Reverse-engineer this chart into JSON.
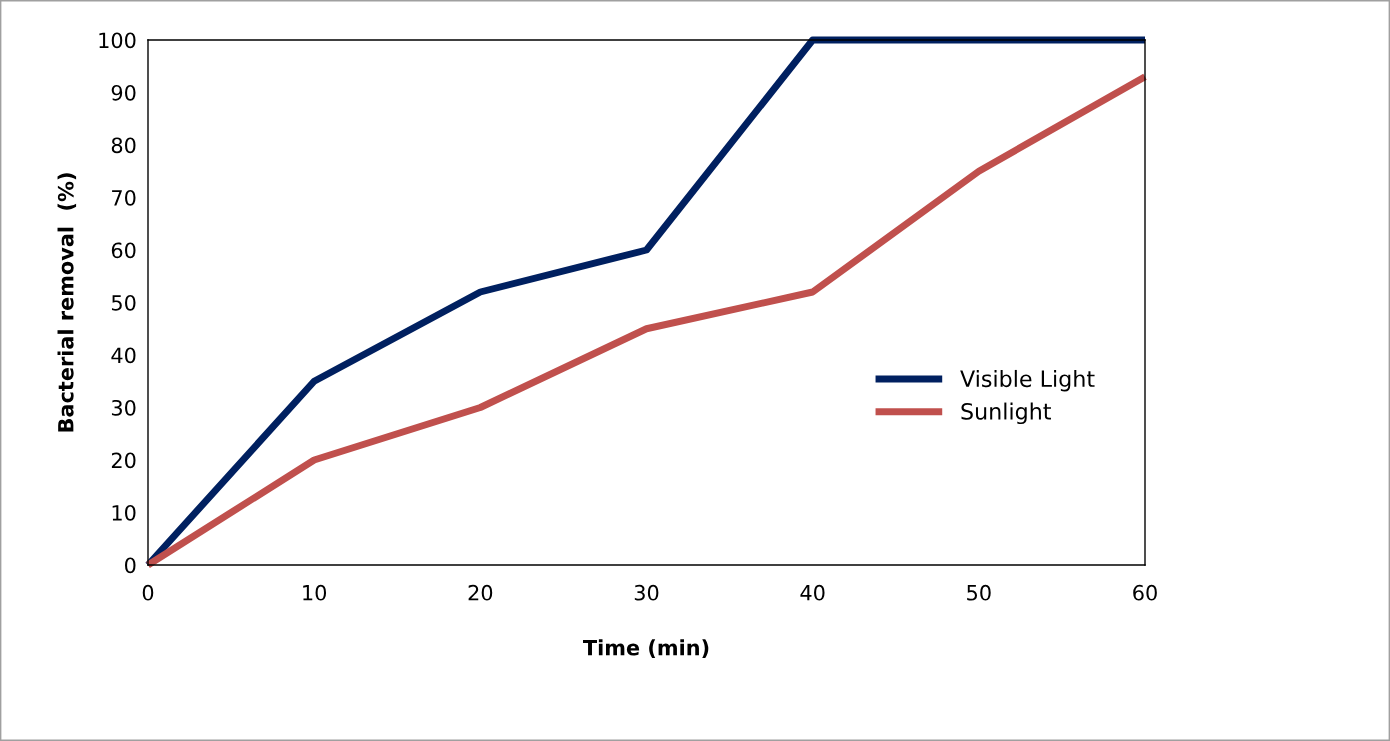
{
  "chart_data": {
    "type": "line",
    "xlabel": "Time (min)",
    "ylabel": "Bacterial removal  (%)",
    "x": [
      0,
      10,
      20,
      30,
      40,
      50,
      60
    ],
    "series": [
      {
        "name": "Visible Light",
        "color": "#002060",
        "values": [
          0,
          35,
          52,
          60,
          100,
          100,
          100
        ]
      },
      {
        "name": "Sunlight",
        "color": "#c0504d",
        "values": [
          0,
          20,
          30,
          45,
          52,
          75,
          93
        ]
      }
    ],
    "xlim": [
      0,
      60
    ],
    "xticks": [
      0,
      10,
      20,
      30,
      40,
      50,
      60
    ],
    "ylim": [
      0,
      100
    ],
    "yticks": [
      0,
      10,
      20,
      30,
      40,
      50,
      60,
      70,
      80,
      90,
      100
    ],
    "grid": false,
    "legend": "right",
    "marker": "none",
    "line_style": "solid"
  }
}
